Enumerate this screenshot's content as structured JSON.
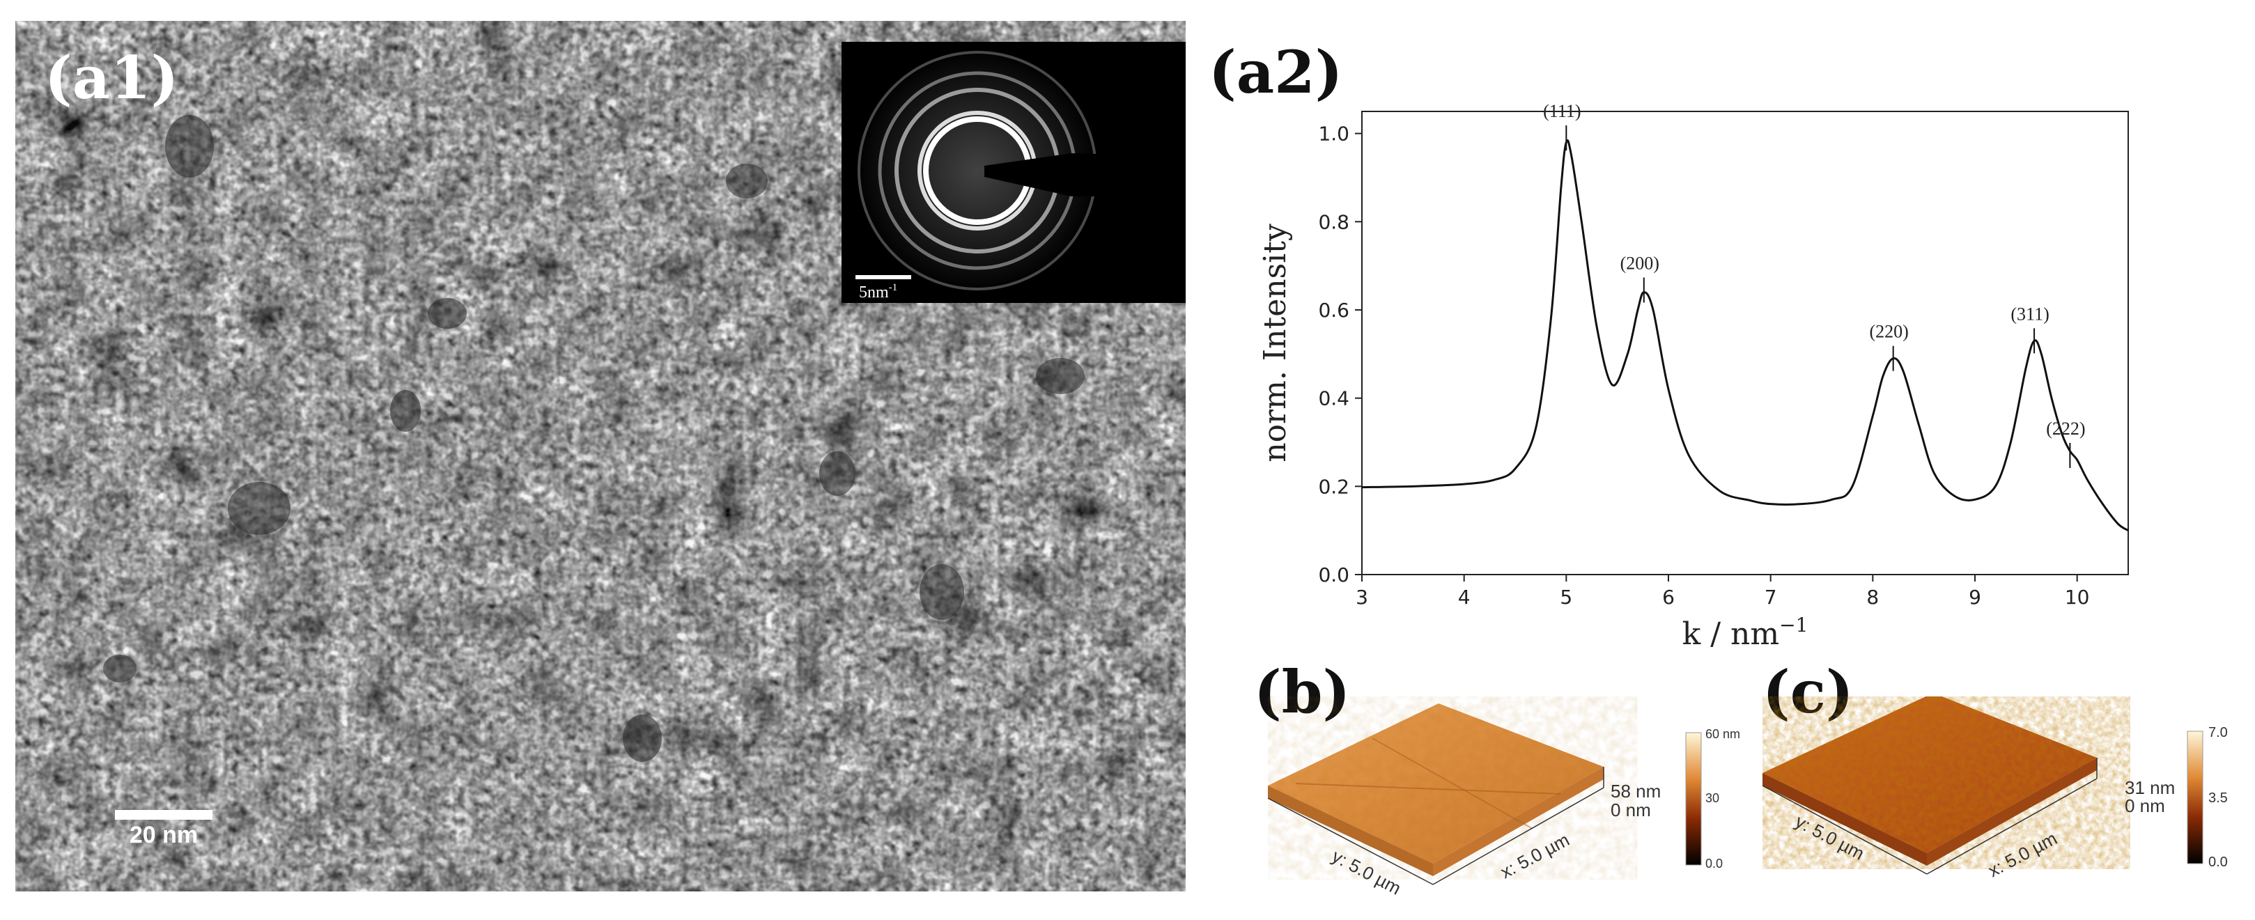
{
  "panels": {
    "a1": {
      "label": "(a1)",
      "scale_bar": "20 nm",
      "inset": {
        "scale_bar": "5nm",
        "scale_bar_sup": "-1"
      }
    },
    "a2": {
      "label": "(a2)"
    },
    "b": {
      "label": "(b)",
      "height_label": "58 nm",
      "zero_label": "0 nm",
      "y_axis_label": "y: 5.0 µm",
      "x_axis_label": "x: 5.0 µm",
      "colorbar": {
        "max": "60 nm",
        "mid": "30",
        "min": "0.0"
      }
    },
    "c": {
      "label": "(c)",
      "height_label": "31 nm",
      "zero_label": "0 nm",
      "y_axis_label": "y: 5.0 µm",
      "x_axis_label": "x: 5.0 µm",
      "colorbar": {
        "max": "7.0",
        "mid": "3.5",
        "min": "0.0"
      }
    }
  },
  "chart_data": {
    "type": "line",
    "xlabel": "k / nm",
    "xlabel_sup": "−1",
    "ylabel": "norm. Intensity",
    "xlim": [
      3,
      10.5
    ],
    "ylim": [
      0.0,
      1.05
    ],
    "xticks": [
      "3",
      "4",
      "5",
      "6",
      "7",
      "8",
      "9",
      "10"
    ],
    "yticks": [
      "0.0",
      "0.2",
      "0.4",
      "0.6",
      "0.8",
      "1.0"
    ],
    "grid": false,
    "series": [
      {
        "x": [
          3.0,
          3.5,
          4.0,
          4.3,
          4.5,
          4.7,
          4.85,
          4.95,
          5.0,
          5.05,
          5.15,
          5.3,
          5.45,
          5.6,
          5.7,
          5.76,
          5.85,
          6.0,
          6.2,
          6.5,
          6.8,
          7.0,
          7.3,
          7.6,
          7.8,
          8.0,
          8.1,
          8.2,
          8.3,
          8.45,
          8.6,
          8.8,
          9.0,
          9.2,
          9.35,
          9.5,
          9.58,
          9.65,
          9.75,
          9.85,
          9.93,
          10.0,
          10.1,
          10.25,
          10.4,
          10.5
        ],
        "y": [
          0.198,
          0.2,
          0.205,
          0.215,
          0.24,
          0.33,
          0.58,
          0.88,
          0.98,
          0.95,
          0.8,
          0.56,
          0.43,
          0.5,
          0.6,
          0.64,
          0.6,
          0.42,
          0.27,
          0.19,
          0.168,
          0.16,
          0.16,
          0.17,
          0.2,
          0.36,
          0.45,
          0.49,
          0.46,
          0.34,
          0.23,
          0.178,
          0.17,
          0.2,
          0.3,
          0.47,
          0.53,
          0.5,
          0.4,
          0.32,
          0.28,
          0.26,
          0.215,
          0.16,
          0.115,
          0.1
        ]
      }
    ],
    "annotations": [
      {
        "text": "(111)",
        "x": 5.0,
        "y": 0.99
      },
      {
        "text": "(200)",
        "x": 5.76,
        "y": 0.645
      },
      {
        "text": "(220)",
        "x": 8.2,
        "y": 0.49
      },
      {
        "text": "(311)",
        "x": 9.58,
        "y": 0.53
      },
      {
        "text": "(222)",
        "x": 9.93,
        "y": 0.27
      }
    ]
  }
}
